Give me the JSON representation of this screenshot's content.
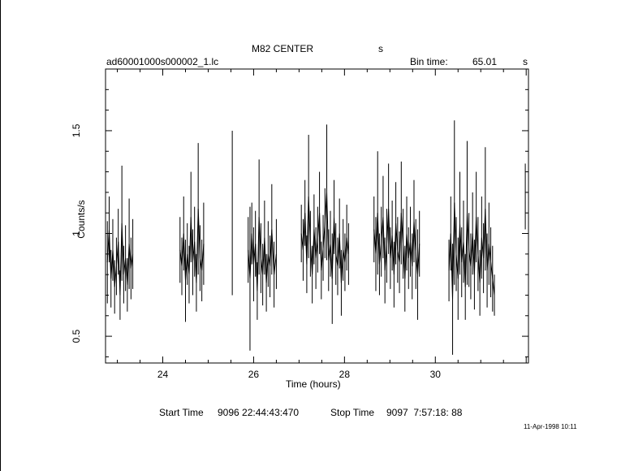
{
  "header": {
    "object": "M82 CENTER",
    "object_unit": "s",
    "filename": "ad60001000s000002_1.lc",
    "bin_label": "Bin time:",
    "bin_value": "65.01",
    "bin_unit": "s"
  },
  "footer": {
    "start_label": "Start Time",
    "start_value": "9096 22:44:43:470",
    "stop_label": "Stop Time",
    "stop_value": "9097  7:57:18: 88",
    "date_stamp": "11-Apr-1998 10:11"
  },
  "chart_data": {
    "type": "line",
    "title": "M82 CENTER",
    "xlabel": "Time (hours)",
    "ylabel": "Counts/s",
    "xlim": [
      22.74,
      32.05
    ],
    "ylim": [
      0.37,
      1.8
    ],
    "xticks": [
      24,
      26,
      28,
      30
    ],
    "xtick_labels": [
      "24",
      "26",
      "28",
      "30"
    ],
    "yticks": [
      0.5,
      1,
      1.5
    ],
    "ytick_labels": [
      "0.5",
      "1",
      "1.5"
    ],
    "grid": false,
    "series": [
      {
        "segments": [
          {
            "t": [
              22.78,
              22.82,
              22.86,
              22.9,
              22.94,
              22.98,
              23.02,
              23.06,
              23.1,
              23.14,
              23.18,
              23.22,
              23.26,
              23.3,
              23.34
            ],
            "y": [
              0.86,
              1.02,
              0.78,
              0.92,
              0.74,
              0.84,
              0.96,
              0.7,
              1.05,
              0.8,
              0.88,
              0.75,
              0.95,
              0.83,
              0.9
            ],
            "err": [
              0.2,
              0.16,
              0.14,
              0.15,
              0.13,
              0.14,
              0.16,
              0.12,
              0.28,
              0.14,
              0.16,
              0.13,
              0.22,
              0.15,
              0.17
            ]
          },
          {
            "t": [
              24.38,
              24.42,
              24.46,
              24.5,
              24.54,
              24.58,
              24.62,
              24.66,
              24.7,
              24.74,
              24.78,
              24.82,
              24.86,
              24.9
            ],
            "y": [
              0.92,
              0.84,
              1.0,
              0.77,
              0.9,
              0.8,
              1.08,
              0.86,
              0.96,
              0.76,
              1.12,
              0.88,
              0.82,
              0.95
            ],
            "err": [
              0.16,
              0.14,
              0.18,
              0.2,
              0.15,
              0.14,
              0.22,
              0.16,
              0.17,
              0.14,
              0.32,
              0.16,
              0.15,
              0.2
            ]
          },
          {
            "t": [
              25.53
            ],
            "y": [
              1.1
            ],
            "err": [
              0.4
            ]
          },
          {
            "t": [
              25.88,
              25.92,
              25.96,
              26.0,
              26.04,
              26.08,
              26.12,
              26.16,
              26.2,
              26.24,
              26.28,
              26.32,
              26.36,
              26.4,
              26.45,
              26.5
            ],
            "y": [
              0.92,
              0.78,
              1.0,
              0.85,
              0.95,
              0.72,
              1.08,
              0.88,
              0.8,
              0.98,
              0.76,
              0.9,
              0.84,
              1.02,
              0.8,
              0.9
            ],
            "err": [
              0.16,
              0.35,
              0.15,
              0.18,
              0.16,
              0.14,
              0.28,
              0.17,
              0.15,
              0.18,
              0.14,
              0.16,
              0.15,
              0.22,
              0.16,
              0.17
            ]
          },
          {
            "t": [
              27.05,
              27.09,
              27.13,
              27.17,
              27.21,
              27.25,
              27.29,
              27.33,
              27.37,
              27.41,
              27.45,
              27.49,
              27.53,
              27.57,
              27.61,
              27.65,
              27.69,
              27.73,
              27.77,
              27.81,
              27.85,
              27.89,
              27.93,
              27.97,
              28.01,
              28.05,
              28.09
            ],
            "y": [
              1.0,
              0.92,
              1.1,
              0.85,
              1.18,
              0.95,
              0.8,
              1.02,
              0.88,
              0.97,
              1.1,
              0.82,
              0.93,
              1.05,
              1.2,
              0.87,
              0.95,
              0.78,
              1.08,
              0.9,
              0.84,
              1.0,
              0.76,
              0.92,
              0.86,
              0.98,
              0.9
            ],
            "err": [
              0.14,
              0.15,
              0.16,
              0.14,
              0.3,
              0.16,
              0.14,
              0.17,
              0.15,
              0.16,
              0.2,
              0.14,
              0.16,
              0.17,
              0.33,
              0.15,
              0.16,
              0.22,
              0.18,
              0.15,
              0.14,
              0.17,
              0.16,
              0.15,
              0.14,
              0.16,
              0.15
            ]
          },
          {
            "t": [
              28.65,
              28.69,
              28.73,
              28.77,
              28.81,
              28.85,
              28.89,
              28.93,
              28.97,
              29.01,
              29.05,
              29.09,
              29.13,
              29.17,
              29.21,
              29.25,
              29.29,
              29.33,
              29.37,
              29.41,
              29.45,
              29.49,
              29.53,
              29.57,
              29.61,
              29.65
            ],
            "y": [
              1.02,
              0.9,
              1.1,
              0.85,
              0.96,
              1.08,
              0.82,
              0.94,
              1.12,
              0.88,
              0.99,
              0.8,
              1.05,
              0.92,
              0.86,
              1.1,
              0.95,
              0.78,
              1.0,
              0.88,
              0.96,
              0.84,
              1.06,
              0.9,
              0.8,
              0.95
            ],
            "err": [
              0.16,
              0.18,
              0.3,
              0.15,
              0.17,
              0.2,
              0.16,
              0.18,
              0.22,
              0.15,
              0.17,
              0.16,
              0.2,
              0.16,
              0.15,
              0.25,
              0.17,
              0.16,
              0.18,
              0.15,
              0.17,
              0.16,
              0.2,
              0.17,
              0.22,
              0.16
            ]
          },
          {
            "t": [
              30.3,
              30.34,
              30.38,
              30.42,
              30.46,
              30.5,
              30.54,
              30.58,
              30.62,
              30.66,
              30.7,
              30.74,
              30.78,
              30.82,
              30.86,
              30.9,
              30.94,
              30.98,
              31.02,
              31.06,
              31.1,
              31.14,
              31.18,
              31.22,
              31.26,
              31.3
            ],
            "y": [
              0.82,
              1.0,
              0.68,
              1.15,
              0.9,
              0.78,
              1.05,
              0.86,
              0.96,
              0.74,
              1.1,
              0.92,
              0.84,
              1.0,
              0.8,
              1.08,
              0.9,
              0.76,
              0.98,
              0.88,
              1.12,
              0.82,
              0.95,
              0.86,
              0.78,
              0.7
            ],
            "err": [
              0.15,
              0.18,
              0.27,
              0.4,
              0.18,
              0.2,
              0.25,
              0.17,
              0.2,
              0.16,
              0.35,
              0.18,
              0.16,
              0.2,
              0.17,
              0.22,
              0.18,
              0.16,
              0.2,
              0.17,
              0.3,
              0.18,
              0.2,
              0.17,
              0.16,
              0.1
            ]
          },
          {
            "t": [
              31.98
            ],
            "y": [
              1.18
            ],
            "err": [
              0.16
            ]
          }
        ]
      }
    ]
  }
}
